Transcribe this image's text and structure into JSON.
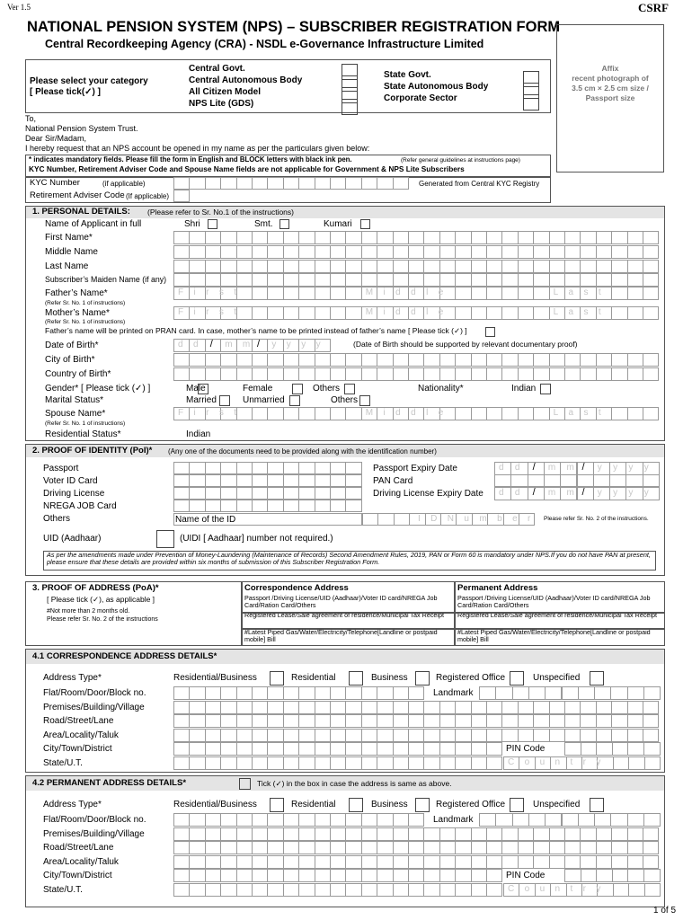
{
  "header": {
    "version": "Ver 1.5",
    "form_code": "CSRF",
    "title": "NATIONAL PENSION SYSTEM (NPS) – SUBSCRIBER REGISTRATION FORM",
    "subtitle": "Central Recordkeeping Agency (CRA) - NSDL e-Governance Infrastructure Limited"
  },
  "photo": [
    "Affix",
    "recent photograph of",
    "3.5 cm × 2.5 cm size /",
    "Passport size"
  ],
  "category": {
    "prompt": "Please select your category",
    "tick": "[ Please tick(✓) ]",
    "left": [
      "Central Govt.",
      "Central Autonomous Body",
      "All Citizen Model",
      "NPS Lite (GDS)"
    ],
    "right": [
      "State Govt.",
      "State Autonomous Body",
      "Corporate Sector"
    ]
  },
  "letter": [
    "To,",
    "National Pension System Trust.",
    "Dear Sir/Madam,",
    "I hereby request that an NPS account be opened in my name as per the particulars given below:"
  ],
  "notice": {
    "mandatory": "* indicates mandatory fields. Please fill the form in English and BLOCK letters with black ink pen.",
    "guidelines": "(Refer general guidelines at instructions page)",
    "kyc": "KYC Number, Retirement Adviser Code and Spouse Name fields are not applicable for Government & NPS Lite Subscribers"
  },
  "kyc": {
    "kyc_label": "KYC Number",
    "kyc_hint": "(if applicable)",
    "kyc_note": "Generated from Central KYC Registry",
    "adviser_label": "Retirement Adviser Code",
    "adviser_hint": "(If applicable)"
  },
  "placeholders": {
    "first": "First",
    "middle": "Middle",
    "last": "Last",
    "dd": "dd",
    "mm": "mm",
    "yyyy": "yyyy",
    "slash": "/",
    "country": "Country",
    "id_number": "IDNumber"
  },
  "personal": {
    "title": "1. PERSONAL DETAILS:",
    "title_note": "(Please refer to Sr. No.1 of the instructions)",
    "name_full": "Name of Applicant in full",
    "titles": [
      "Shri",
      "Smt.",
      "Kumari"
    ],
    "first_name": "First Name*",
    "middle_name": "Middle Name",
    "last_name": "Last Name",
    "maiden": "Subscriber’s Maiden Name (if any)",
    "father": "Father’s Name*",
    "refer": "(Refer Sr. No. 1 of instructions)",
    "mother": "Mother’s Name*",
    "pran_note": "Father’s name will be printed on PRAN card. In case, mother’s name to be printed instead of father’s name [ Please tick (✓) ]",
    "dob": "Date of Birth*",
    "dob_note": "(Date of Birth should be supported by relevant documentary proof)",
    "city_birth": "City of Birth*",
    "country_birth": "Country of Birth*",
    "gender": "Gender*  [ Please tick (✓) ]",
    "genders": [
      "Male",
      "Female",
      "Others"
    ],
    "nationality": "Nationality*",
    "nationality_value": "Indian",
    "marital": "Marital Status*",
    "marital_options": [
      "Married",
      "Unmarried",
      "Others"
    ],
    "spouse": "Spouse Name*",
    "residential": "Residential Status*",
    "residential_value": "Indian"
  },
  "identity": {
    "title": "2. PROOF OF IDENTITY (PoI)*",
    "title_note": "(Any one of the documents need to be provided along with the identification number)",
    "documents": [
      "Passport",
      "Voter ID Card",
      "Driving License",
      "NREGA JOB Card",
      "Others"
    ],
    "right": [
      "Passport Expiry Date",
      "PAN Card",
      "Driving License Expiry Date"
    ],
    "name_of_id": "Name of the ID",
    "refer": "Please refer Sr. No. 2 of the instructions.",
    "uid": "UID (Aadhaar)",
    "uid_note": "(UIDI [ Aadhaar] number not required.)",
    "amendment": "As per the amendments made under Prevention of Money-Laundering (Maintenance of Records) Second Amendment Rules, 2019, PAN or Form 60 is mandatory under NPS.If you do not have PAN at present, please ensure that these details are provided within six months of submission of this Subscriber Registration Form."
  },
  "address_proof": {
    "title": "3.   PROOF OF ADDRESS (PoA)*",
    "tick": "[ Please tick (✓), as applicable ]",
    "hash": "#Not more than 2 months old.",
    "refer": "Please refer Sr. No. 2 of the instructions",
    "columns": [
      {
        "heading": "Correspondence Address",
        "items": [
          "Passport /Driving License/UID (Aadhaar)/Voter ID card/NREGA Job Card/Ration Card/Others",
          "Registered Lease/Sale agreement of residence/Municipal Tax Receipt",
          "#Latest Piped Gas/Water/Electricity/Telephone[Landline or postpaid mobile] Bill"
        ]
      },
      {
        "heading": "Permanent Address",
        "items": [
          "Passport /Driving License/UID (Aadhaar)/Voter ID card/NREGA Job Card/Ration Card/Others",
          "Registered Lease/Sale agreement of residence/Municipal Tax Receipt",
          "#Latest Piped Gas/Water/Electricity/Telephone[Landline or postpaid mobile] Bill"
        ]
      }
    ]
  },
  "address_labels": {
    "address_type": "Address Type*",
    "types": [
      "Residential/Business",
      "Residential",
      "Business",
      "Registered Office",
      "Unspecified"
    ],
    "fields": [
      "Flat/Room/Door/Block no.",
      "Premises/Building/Village",
      "Road/Street/Lane",
      "Area/Locality/Taluk",
      "City/Town/District",
      "State/U.T."
    ],
    "landmark": "Landmark",
    "pin": "PIN Code"
  },
  "correspondence": {
    "title": "4.1 CORRESPONDENCE ADDRESS DETAILS*"
  },
  "permanent": {
    "title": "4.2 PERMANENT ADDRESS DETAILS*",
    "same_note": "Tick (✓) in the box in case the address is same as above."
  },
  "footer": {
    "page": "1 of 5"
  }
}
